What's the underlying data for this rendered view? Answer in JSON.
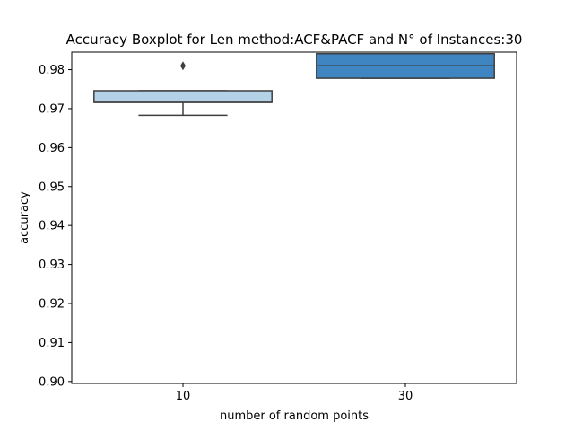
{
  "chart_data": {
    "type": "boxplot",
    "title": "Accuracy Boxplot for Len method:ACF&PACF and N° of Instances:30",
    "xlabel": "number of random points",
    "ylabel": "accuracy",
    "categories": [
      "10",
      "30"
    ],
    "ylim": [
      0.8995,
      0.9845
    ],
    "yticks": [
      0.9,
      0.91,
      0.92,
      0.93,
      0.94,
      0.95,
      0.96,
      0.97,
      0.98
    ],
    "ytick_labels": [
      "0.90",
      "0.91",
      "0.92",
      "0.93",
      "0.94",
      "0.95",
      "0.96",
      "0.97",
      "0.98"
    ],
    "boxes": [
      {
        "category": "10",
        "whisker_low": 0.9683,
        "q1": 0.9716,
        "median": 0.9716,
        "q3": 0.9746,
        "whisker_high": 0.9746,
        "outliers": [
          0.981
        ],
        "color": "#b3d1e7"
      },
      {
        "category": "30",
        "whisker_low": 0.9778,
        "q1": 0.9778,
        "median": 0.981,
        "q3": 0.9841,
        "whisker_high": 0.9841,
        "outliers": [],
        "color": "#3e85c1"
      }
    ],
    "grid": false,
    "legend": "none"
  }
}
